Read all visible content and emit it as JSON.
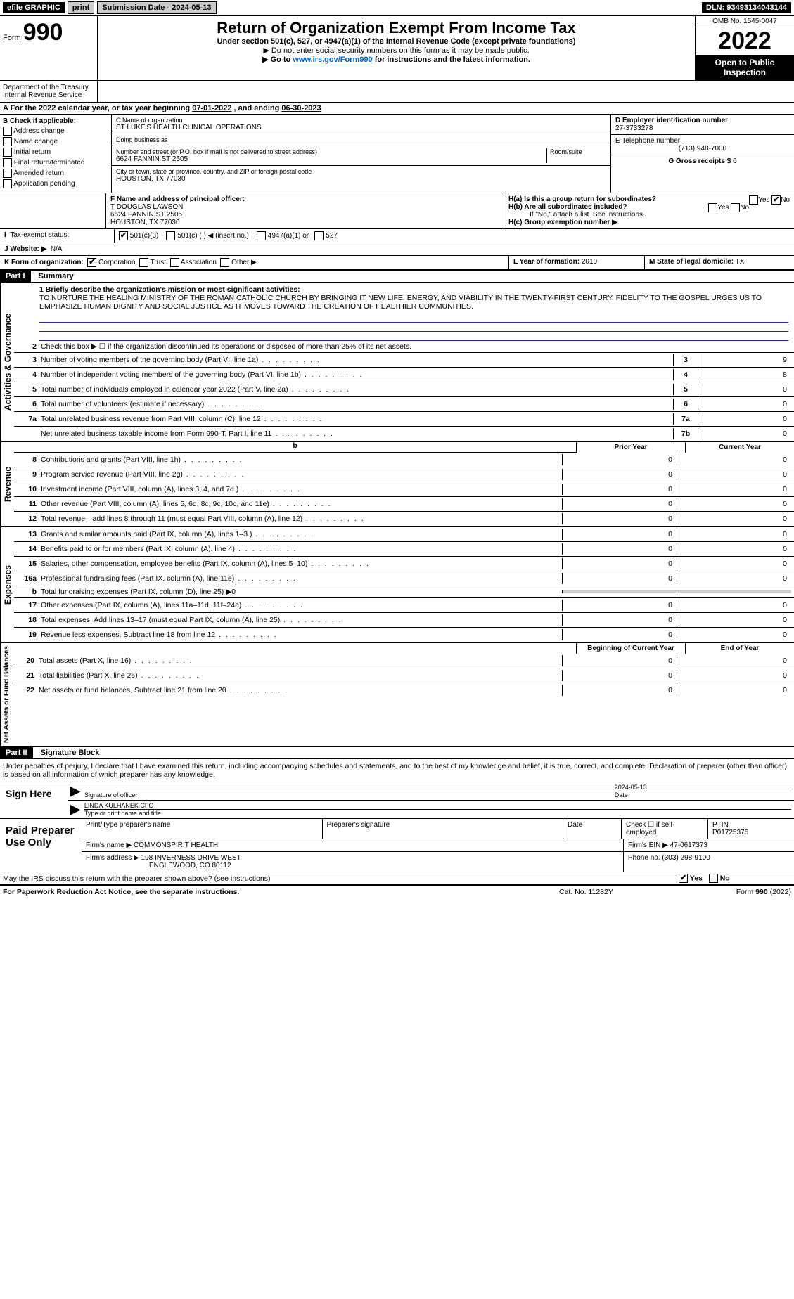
{
  "topbar": {
    "efile": "efile GRAPHIC",
    "print": "print",
    "submission_label": "Submission Date - 2024-05-13",
    "dln": "DLN: 93493134043144"
  },
  "header": {
    "form_label": "Form",
    "form_number": "990",
    "title": "Return of Organization Exempt From Income Tax",
    "subtitle": "Under section 501(c), 527, or 4947(a)(1) of the Internal Revenue Code (except private foundations)",
    "note1": "▶ Do not enter social security numbers on this form as it may be made public.",
    "note2_pre": "▶ Go to ",
    "note2_link": "www.irs.gov/Form990",
    "note2_post": " for instructions and the latest information.",
    "omb": "OMB No. 1545-0047",
    "year": "2022",
    "open_public": "Open to Public Inspection",
    "dept": "Department of the Treasury Internal Revenue Service"
  },
  "period": {
    "label_a": "A For the 2022 calendar year, or tax year beginning ",
    "begin": "07-01-2022",
    "mid": "   , and ending ",
    "end": "06-30-2023"
  },
  "checkboxes": {
    "heading": "B Check if applicable:",
    "items": [
      "Address change",
      "Name change",
      "Initial return",
      "Final return/terminated",
      "Amended return",
      "Application pending"
    ]
  },
  "org": {
    "name_label": "C Name of organization",
    "name": "ST LUKE'S HEALTH CLINICAL OPERATIONS",
    "dba_label": "Doing business as",
    "dba": "",
    "addr_label": "Number and street (or P.O. box if mail is not delivered to street address)",
    "room_label": "Room/suite",
    "addr": "6624 FANNIN ST 2505",
    "city_label": "City or town, state or province, country, and ZIP or foreign postal code",
    "city": "HOUSTON, TX  77030"
  },
  "right": {
    "ein_label": "D Employer identification number",
    "ein": "27-3733278",
    "tel_label": "E Telephone number",
    "tel": "(713) 948-7000",
    "gross_label": "G Gross receipts $",
    "gross": "0"
  },
  "principal": {
    "label": "F  Name and address of principal officer:",
    "name": "T DOUGLAS LAWSON",
    "addr1": "6624 FANNIN ST 2505",
    "addr2": "HOUSTON, TX  77030",
    "ha": "H(a)  Is this a group return for subordinates?",
    "ha_yes": "Yes",
    "ha_no": "No",
    "hb": "H(b)  Are all subordinates included?",
    "hb_note": "If \"No,\" attach a list. See instructions.",
    "hc": "H(c)  Group exemption number ▶"
  },
  "exempt": {
    "label": "Tax-exempt status:",
    "opt1": "501(c)(3)",
    "opt2": "501(c) (   ) ◀ (insert no.)",
    "opt3": "4947(a)(1) or",
    "opt4": "527"
  },
  "website": {
    "label": "J   Website: ▶",
    "value": "N/A"
  },
  "formorg": {
    "label": "K Form of organization:",
    "opts": [
      "Corporation",
      "Trust",
      "Association",
      "Other ▶"
    ],
    "year_label": "L Year of formation:",
    "year": "2010",
    "state_label": "M State of legal domicile:",
    "state": "TX"
  },
  "part1": {
    "header": "Part I",
    "title": "Summary",
    "line1_label": "1   Briefly describe the organization's mission or most significant activities:",
    "mission": "TO NURTURE THE HEALING MINISTRY OF THE ROMAN CATHOLIC CHURCH BY BRINGING IT NEW LIFE, ENERGY, AND VIABILITY IN THE TWENTY-FIRST CENTURY. FIDELITY TO THE GOSPEL URGES US TO EMPHASIZE HUMAN DIGNITY AND SOCIAL JUSTICE AS IT MOVES TOWARD THE CREATION OF HEALTHIER COMMUNITIES.",
    "line2": "Check this box ▶ ☐  if the organization discontinued its operations or disposed of more than 25% of its net assets.",
    "governance_label": "Activities & Governance",
    "revenue_label": "Revenue",
    "expenses_label": "Expenses",
    "netassets_label": "Net Assets or Fund Balances",
    "lines_gov": [
      {
        "n": "3",
        "t": "Number of voting members of the governing body (Part VI, line 1a)",
        "box": "3",
        "v": "9"
      },
      {
        "n": "4",
        "t": "Number of independent voting members of the governing body (Part VI, line 1b)",
        "box": "4",
        "v": "8"
      },
      {
        "n": "5",
        "t": "Total number of individuals employed in calendar year 2022 (Part V, line 2a)",
        "box": "5",
        "v": "0"
      },
      {
        "n": "6",
        "t": "Total number of volunteers (estimate if necessary)",
        "box": "6",
        "v": "0"
      },
      {
        "n": "7a",
        "t": "Total unrelated business revenue from Part VIII, column (C), line 12",
        "box": "7a",
        "v": "0"
      },
      {
        "n": "",
        "t": "Net unrelated business taxable income from Form 990-T, Part I, line 11",
        "box": "7b",
        "v": "0"
      }
    ],
    "prior_year": "Prior Year",
    "current_year": "Current Year",
    "lines_rev": [
      {
        "n": "8",
        "t": "Contributions and grants (Part VIII, line 1h)",
        "p": "0",
        "c": "0"
      },
      {
        "n": "9",
        "t": "Program service revenue (Part VIII, line 2g)",
        "p": "0",
        "c": "0"
      },
      {
        "n": "10",
        "t": "Investment income (Part VIII, column (A), lines 3, 4, and 7d )",
        "p": "0",
        "c": "0"
      },
      {
        "n": "11",
        "t": "Other revenue (Part VIII, column (A), lines 5, 6d, 8c, 9c, 10c, and 11e)",
        "p": "0",
        "c": "0"
      },
      {
        "n": "12",
        "t": "Total revenue—add lines 8 through 11 (must equal Part VIII, column (A), line 12)",
        "p": "0",
        "c": "0"
      }
    ],
    "lines_exp": [
      {
        "n": "13",
        "t": "Grants and similar amounts paid (Part IX, column (A), lines 1–3 )",
        "p": "0",
        "c": "0"
      },
      {
        "n": "14",
        "t": "Benefits paid to or for members (Part IX, column (A), line 4)",
        "p": "0",
        "c": "0"
      },
      {
        "n": "15",
        "t": "Salaries, other compensation, employee benefits (Part IX, column (A), lines 5–10)",
        "p": "0",
        "c": "0"
      },
      {
        "n": "16a",
        "t": "Professional fundraising fees (Part IX, column (A), line 11e)",
        "p": "0",
        "c": "0"
      },
      {
        "n": "b",
        "t": "Total fundraising expenses (Part IX, column (D), line 25) ▶0",
        "p": "",
        "c": ""
      },
      {
        "n": "17",
        "t": "Other expenses (Part IX, column (A), lines 11a–11d, 11f–24e)",
        "p": "0",
        "c": "0"
      },
      {
        "n": "18",
        "t": "Total expenses. Add lines 13–17 (must equal Part IX, column (A), line 25)",
        "p": "0",
        "c": "0"
      },
      {
        "n": "19",
        "t": "Revenue less expenses. Subtract line 18 from line 12",
        "p": "0",
        "c": "0"
      }
    ],
    "begin_year": "Beginning of Current Year",
    "end_year": "End of Year",
    "lines_net": [
      {
        "n": "20",
        "t": "Total assets (Part X, line 16)",
        "p": "0",
        "c": "0"
      },
      {
        "n": "21",
        "t": "Total liabilities (Part X, line 26)",
        "p": "0",
        "c": "0"
      },
      {
        "n": "22",
        "t": "Net assets or fund balances. Subtract line 21 from line 20",
        "p": "0",
        "c": "0"
      }
    ]
  },
  "part2": {
    "header": "Part II",
    "title": "Signature Block",
    "declaration": "Under penalties of perjury, I declare that I have examined this return, including accompanying schedules and statements, and to the best of my knowledge and belief, it is true, correct, and complete. Declaration of preparer (other than officer) is based on all information of which preparer has any knowledge."
  },
  "sign": {
    "label": "Sign Here",
    "sig_label": "Signature of officer",
    "date": "2024-05-13",
    "date_label": "Date",
    "name": "LINDA KULHANEK  CFO",
    "name_label": "Type or print name and title"
  },
  "paid": {
    "label": "Paid Preparer Use Only",
    "h1": "Print/Type preparer's name",
    "h2": "Preparer's signature",
    "h3": "Date",
    "h4_check": "Check ☐ if self-employed",
    "h4_ptin_label": "PTIN",
    "h4_ptin": "P01725376",
    "firm_label": "Firm's name    ▶",
    "firm": "COMMONSPIRIT HEALTH",
    "ein_label": "Firm's EIN ▶",
    "ein": "47-0617373",
    "addr_label": "Firm's address ▶",
    "addr1": "198 INVERNESS DRIVE WEST",
    "addr2": "ENGLEWOOD, CO  80112",
    "phone_label": "Phone no.",
    "phone": "(303) 298-9100"
  },
  "discuss": {
    "q": "May the IRS discuss this return with the preparer shown above? (see instructions)",
    "yes": "Yes",
    "no": "No"
  },
  "footer": {
    "left": "For Paperwork Reduction Act Notice, see the separate instructions.",
    "mid": "Cat. No. 11282Y",
    "right_pre": "Form ",
    "right_bold": "990",
    "right_post": " (2022)"
  }
}
